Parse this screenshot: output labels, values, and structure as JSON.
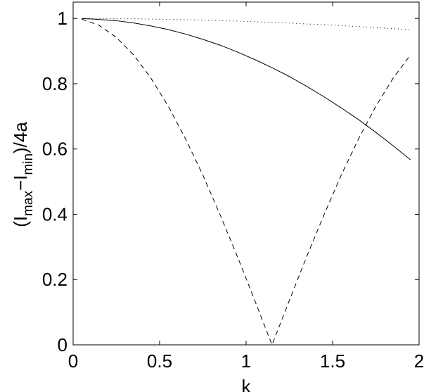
{
  "chart_data": {
    "type": "line",
    "xlabel": "k",
    "ylabel": [
      "(I",
      "max",
      "−I",
      "min",
      ")/4a"
    ],
    "x": [
      0.05,
      0.15,
      0.25,
      0.35,
      0.45,
      0.55,
      0.65,
      0.75,
      0.85,
      0.95,
      1.05,
      1.15,
      1.25,
      1.35,
      1.45,
      1.55,
      1.65,
      1.75,
      1.85,
      1.95
    ],
    "series": [
      {
        "color": "#000000",
        "style": "solid",
        "values": [
          1.0,
          0.997,
          0.993,
          0.986,
          0.977,
          0.966,
          0.952,
          0.936,
          0.918,
          0.897,
          0.874,
          0.849,
          0.822,
          0.792,
          0.76,
          0.726,
          0.69,
          0.651,
          0.61,
          0.567
        ]
      },
      {
        "color": "#000000",
        "style": "dashed",
        "values": [
          0.998,
          0.979,
          0.942,
          0.888,
          0.817,
          0.731,
          0.631,
          0.52,
          0.398,
          0.27,
          0.136,
          0,
          0.136,
          0.27,
          0.398,
          0.52,
          0.631,
          0.731,
          0.817,
          0.888
        ]
      },
      {
        "color": "#000000",
        "style": "dotted",
        "values": [
          1.0,
          1.0,
          0.999,
          0.999,
          0.998,
          0.997,
          0.996,
          0.995,
          0.993,
          0.992,
          0.99,
          0.988,
          0.986,
          0.983,
          0.981,
          0.978,
          0.975,
          0.972,
          0.969,
          0.965
        ]
      }
    ],
    "xlim": [
      0,
      2
    ],
    "xticks": [
      0,
      0.5,
      1,
      1.5,
      2
    ],
    "ylim": [
      0,
      1.05
    ],
    "yticks": [
      0,
      0.2,
      0.4,
      0.6,
      0.8,
      1
    ],
    "grid": false
  }
}
